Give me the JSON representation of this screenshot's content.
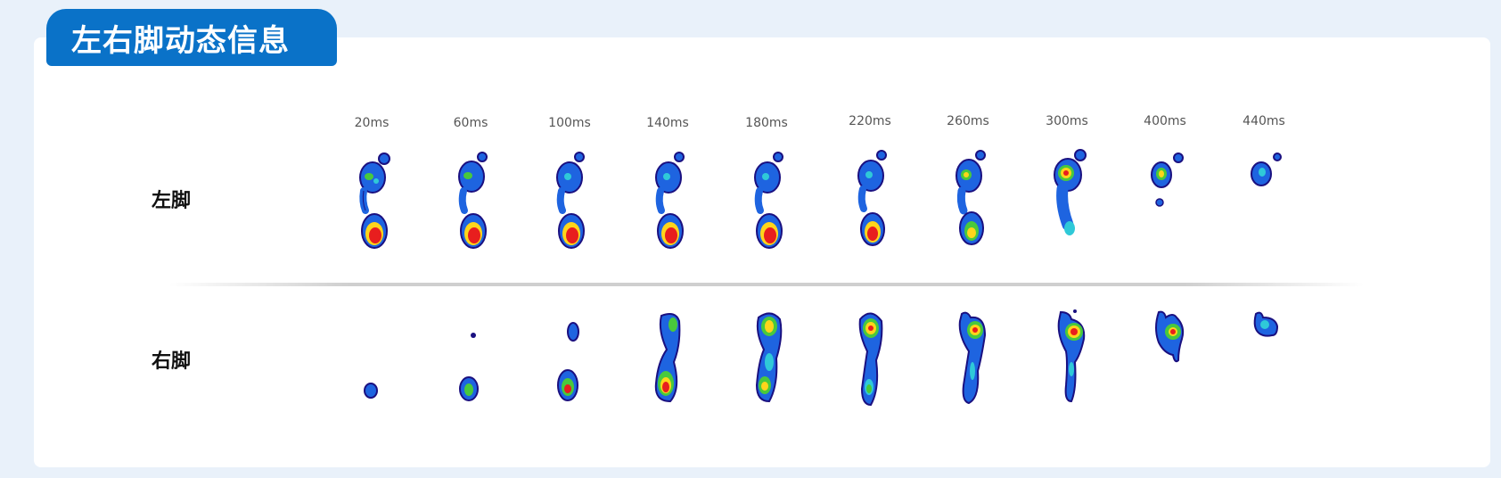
{
  "section_title": "左右脚动态信息",
  "rows": [
    {
      "label": "左脚"
    },
    {
      "label": "右脚"
    }
  ],
  "frames": [
    {
      "time": "20ms"
    },
    {
      "time": "60ms"
    },
    {
      "time": "100ms"
    },
    {
      "time": "140ms"
    },
    {
      "time": "180ms"
    },
    {
      "time": "220ms"
    },
    {
      "time": "260ms"
    },
    {
      "time": "300ms"
    },
    {
      "time": "400ms"
    },
    {
      "time": "440ms"
    }
  ],
  "colors": {
    "title_background": "#0a72c8",
    "page_background": "#e9f1fa",
    "heatmap_outline": "#1a1080",
    "heatmap_low": "#1e64e0",
    "heatmap_mid": "#2fc9d8",
    "heatmap_high": "#49c93c",
    "heatmap_peak": "#ffd51a",
    "heatmap_max": "#e81e1e"
  }
}
